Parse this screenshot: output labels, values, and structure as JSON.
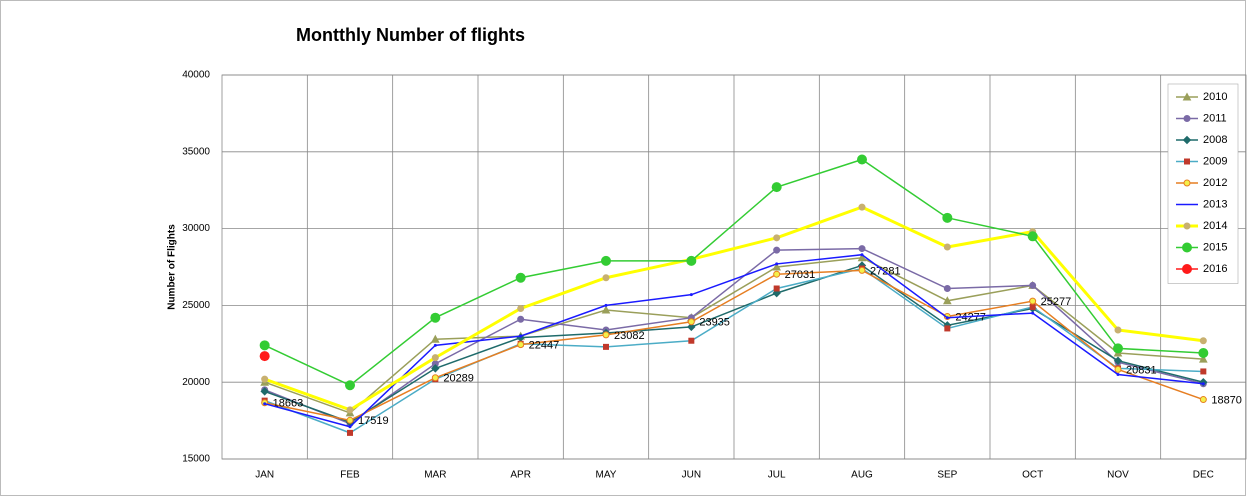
{
  "chart_data": {
    "type": "line",
    "title": "Montthly Number of flights",
    "y_label": "Number of Flights",
    "categories": [
      "JAN",
      "FEB",
      "MAR",
      "APR",
      "MAY",
      "JUN",
      "JUL",
      "AUG",
      "SEP",
      "OCT",
      "NOV",
      "DEC"
    ],
    "ylim": [
      15000,
      40000
    ],
    "yticks": [
      15000,
      20000,
      25000,
      30000,
      35000,
      40000
    ],
    "grid": true,
    "legend": "upper right",
    "series": [
      {
        "name": "2010",
        "color": "#9a9f5a",
        "marker": "triangle",
        "values": [
          20000,
          18000,
          22800,
          23000,
          24700,
          24200,
          27500,
          28100,
          25300,
          26300,
          21900,
          21500
        ]
      },
      {
        "name": "2011",
        "color": "#7a6aa6",
        "marker": "circle",
        "values": [
          19500,
          17300,
          21200,
          24100,
          23400,
          24200,
          28600,
          28700,
          26100,
          26300,
          21300,
          19900
        ]
      },
      {
        "name": "2008",
        "color": "#1f6b6b",
        "marker": "diamond",
        "values": [
          19400,
          17400,
          20900,
          22900,
          23200,
          23600,
          25800,
          27600,
          23700,
          24800,
          21400,
          20000
        ]
      },
      {
        "name": "2009",
        "color": "#4bacc6",
        "marker_color": "#c0392b",
        "marker": "square",
        "values": [
          18800,
          16700,
          20200,
          22500,
          22300,
          22700,
          26100,
          27400,
          23500,
          24900,
          20900,
          20700
        ]
      },
      {
        "name": "2012",
        "color": "#e67e22",
        "marker_color": "#f4f04a",
        "marker": "circle",
        "labels": true,
        "values": [
          18663,
          17519,
          20289,
          22447,
          23082,
          23935,
          27031,
          27281,
          24277,
          25277,
          20831,
          18870
        ]
      },
      {
        "name": "2013",
        "color": "#1a1aff",
        "values": [
          18600,
          17100,
          22400,
          23000,
          25000,
          25700,
          27700,
          28300,
          24200,
          24500,
          20500,
          19900
        ]
      },
      {
        "name": "2014",
        "color": "#ffff00",
        "marker_color": "#c8b070",
        "marker": "circle",
        "values": [
          20200,
          18200,
          21600,
          24800,
          26800,
          28000,
          29400,
          31400,
          28800,
          29800,
          23400,
          22700
        ]
      },
      {
        "name": "2015",
        "color": "#33cc33",
        "marker": "big-circle",
        "values": [
          22400,
          19800,
          24200,
          26800,
          27900,
          27900,
          32700,
          34500,
          30700,
          29500,
          22200,
          21900
        ]
      },
      {
        "name": "2016",
        "color": "#ff1a1a",
        "marker": "big-circle",
        "values": [
          21700,
          null,
          null,
          null,
          null,
          null,
          null,
          null,
          null,
          null,
          null,
          null
        ]
      }
    ]
  }
}
